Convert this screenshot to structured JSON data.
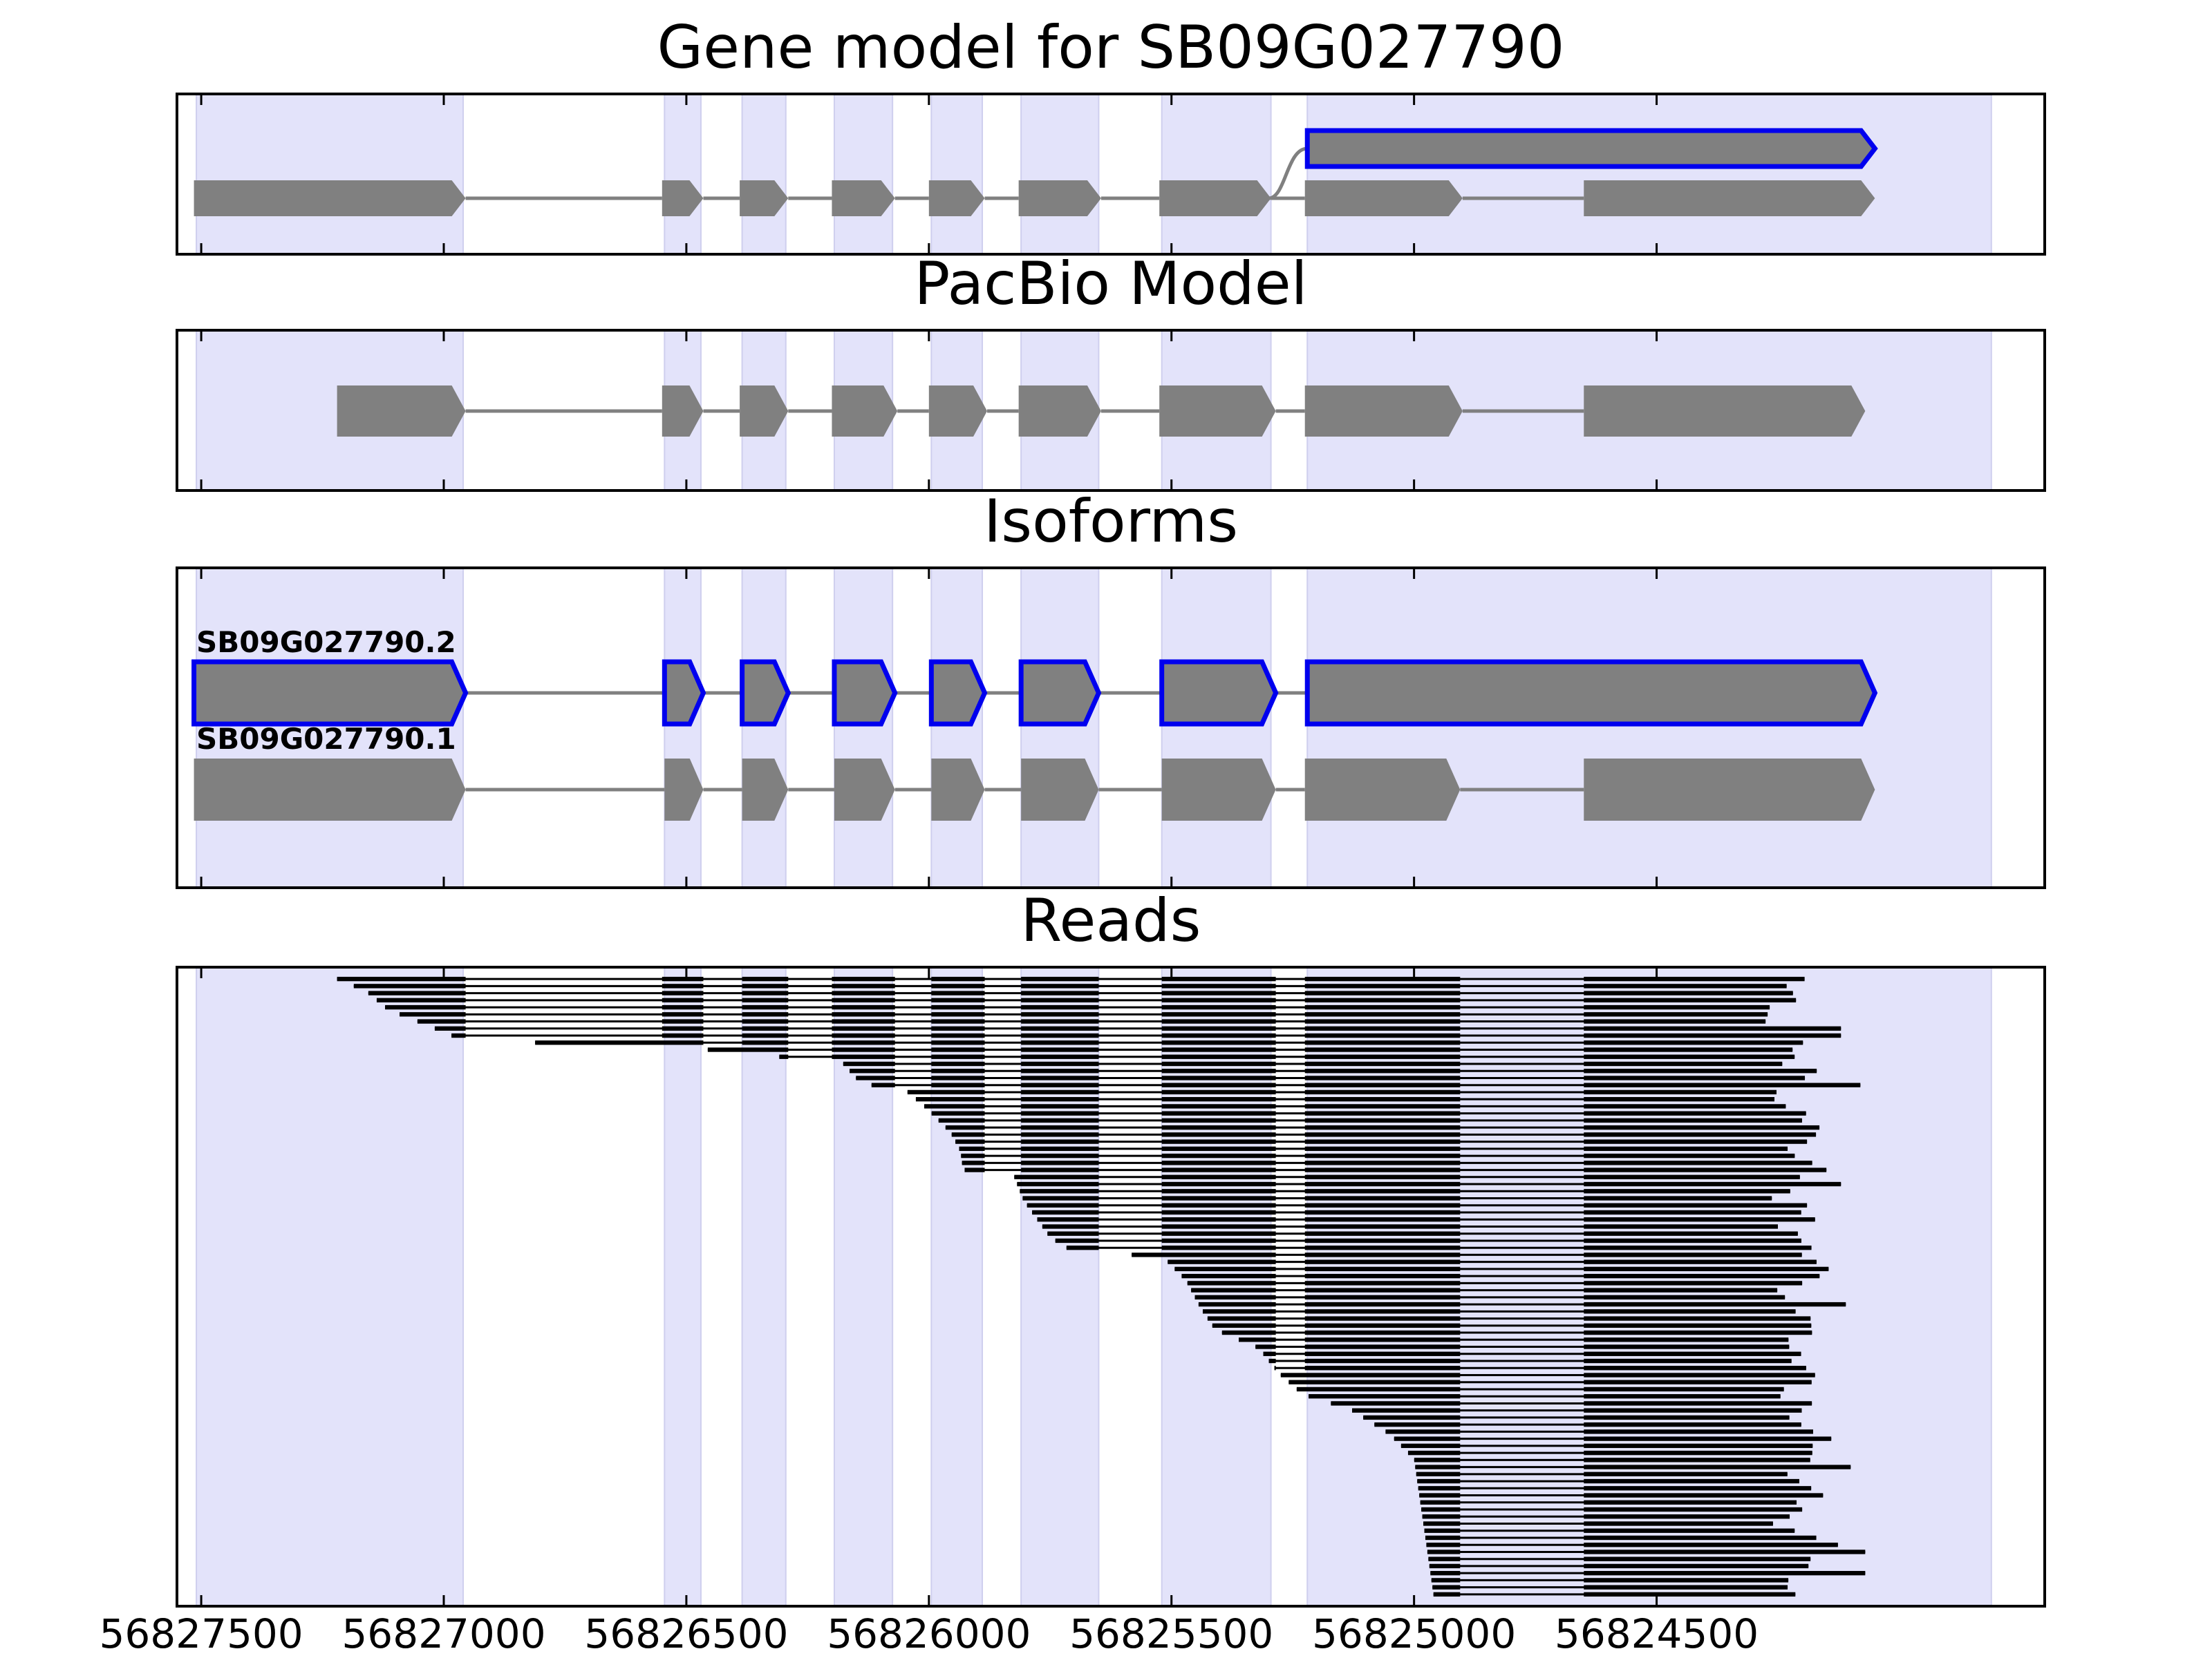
{
  "chart_data": {
    "type": "gene-track",
    "x_direction": "decreasing",
    "xlim": [
      56827550,
      56823700
    ],
    "x_ticks": [
      56827500,
      56827000,
      56826500,
      56826000,
      56825500,
      56825000,
      56824500
    ],
    "x_tick_labels": [
      "56827500",
      "56827000",
      "56826500",
      "56826000",
      "56825500",
      "56825000",
      "56824500"
    ],
    "exon_shading": [
      [
        56827510,
        56826960
      ],
      [
        56826545,
        56826470
      ],
      [
        56826385,
        56826295
      ],
      [
        56826195,
        56826075
      ],
      [
        56825995,
        56825890
      ],
      [
        56825810,
        56825650
      ],
      [
        56825520,
        56825295
      ],
      [
        56825220,
        56823810
      ]
    ],
    "panels": [
      {
        "title": "Gene model for SB09G027790",
        "transcripts": [
          {
            "label": "",
            "highlight": false,
            "exons": [
              [
                56827515,
                56826955
              ],
              [
                56826550,
                56826465
              ],
              [
                56826390,
                56826290
              ],
              [
                56826200,
                56826070
              ],
              [
                56826000,
                56825885
              ],
              [
                56825815,
                56825645
              ],
              [
                56825525,
                56825295
              ],
              [
                56825225,
                56824900
              ],
              [
                56824650,
                56824050
              ]
            ]
          },
          {
            "label": "",
            "highlight": true,
            "branch_from": 56825300,
            "exons": [
              [
                56825220,
                56824050
              ]
            ]
          }
        ]
      },
      {
        "title": "PacBio Model",
        "transcripts": [
          {
            "label": "",
            "highlight": false,
            "exons": [
              [
                56827220,
                56826955
              ],
              [
                56826550,
                56826465
              ],
              [
                56826390,
                56826290
              ],
              [
                56826200,
                56826065
              ],
              [
                56826000,
                56825880
              ],
              [
                56825815,
                56825645
              ],
              [
                56825525,
                56825285
              ],
              [
                56825225,
                56824900
              ],
              [
                56824650,
                56824070
              ]
            ]
          }
        ]
      },
      {
        "title": "Isoforms",
        "transcripts": [
          {
            "label": "SB09G027790.2",
            "highlight": true,
            "exons": [
              [
                56827515,
                56826955
              ],
              [
                56826545,
                56826465
              ],
              [
                56826385,
                56826290
              ],
              [
                56826195,
                56826070
              ],
              [
                56825995,
                56825885
              ],
              [
                56825810,
                56825650
              ],
              [
                56825520,
                56825285
              ],
              [
                56825220,
                56824050
              ]
            ]
          },
          {
            "label": "SB09G027790.1",
            "highlight": false,
            "exons": [
              [
                56827515,
                56826955
              ],
              [
                56826545,
                56826465
              ],
              [
                56826385,
                56826290
              ],
              [
                56826195,
                56826070
              ],
              [
                56825995,
                56825885
              ],
              [
                56825810,
                56825650
              ],
              [
                56825520,
                56825285
              ],
              [
                56825225,
                56824905
              ],
              [
                56824650,
                56824050
              ]
            ]
          }
        ]
      }
    ],
    "reads": {
      "title": "Reads",
      "count": 88,
      "junctions": [
        [
          56826955,
          56826550
        ],
        [
          56826465,
          56826385
        ],
        [
          56826290,
          56826200
        ],
        [
          56826070,
          56825995
        ],
        [
          56825885,
          56825810
        ],
        [
          56825650,
          56825520
        ],
        [
          56825285,
          56825225
        ],
        [
          56824905,
          56824650
        ]
      ],
      "start_points": [
        [
          0,
          56827220
        ],
        [
          0.02,
          56827160
        ],
        [
          0.05,
          56827115
        ],
        [
          0.075,
          56827035
        ],
        [
          0.1,
          56826960
        ],
        [
          0.11,
          56826530
        ],
        [
          0.12,
          56826380
        ],
        [
          0.125,
          56826330
        ],
        [
          0.135,
          56826180
        ],
        [
          0.17,
          56826140
        ],
        [
          0.18,
          56826050
        ],
        [
          0.21,
          56826005
        ],
        [
          0.25,
          56825955
        ],
        [
          0.28,
          56825935
        ],
        [
          0.31,
          56825930
        ],
        [
          0.32,
          56825825
        ],
        [
          0.36,
          56825805
        ],
        [
          0.42,
          56825750
        ],
        [
          0.445,
          56825700
        ],
        [
          0.45,
          56825520
        ],
        [
          0.49,
          56825470
        ],
        [
          0.535,
          56825440
        ],
        [
          0.57,
          56825410
        ],
        [
          0.6,
          56825320
        ],
        [
          0.64,
          56825280
        ],
        [
          0.675,
          56825230
        ],
        [
          0.7,
          56825130
        ],
        [
          0.74,
          56825050
        ],
        [
          0.78,
          56825000
        ],
        [
          1,
          56824960
        ]
      ],
      "end_points": [
        [
          0,
          56824220
        ],
        [
          0.03,
          56824220
        ],
        [
          0.07,
          56824280
        ],
        [
          0.1,
          56824180
        ],
        [
          0.12,
          56824240
        ],
        [
          0.16,
          56824200
        ],
        [
          0.2,
          56824260
        ],
        [
          0.24,
          56824160
        ],
        [
          0.28,
          56824230
        ],
        [
          0.31,
          56824170
        ],
        [
          0.35,
          56824250
        ],
        [
          0.39,
          56824190
        ],
        [
          0.43,
          56824210
        ],
        [
          0.47,
          56824150
        ],
        [
          0.51,
          56824260
        ],
        [
          0.55,
          56824180
        ],
        [
          0.6,
          56824230
        ],
        [
          0.64,
          56824170
        ],
        [
          0.68,
          56824240
        ],
        [
          0.72,
          56824200
        ],
        [
          0.76,
          56824160
        ],
        [
          0.8,
          56824220
        ],
        [
          0.84,
          56824180
        ],
        [
          0.88,
          56824250
        ],
        [
          0.92,
          56824140
        ],
        [
          0.96,
          56824200
        ],
        [
          1,
          56824220
        ]
      ],
      "long_reads": [
        [
          7,
          56824120
        ],
        [
          8,
          56824120
        ],
        [
          13,
          56824170
        ],
        [
          15,
          56824080
        ],
        [
          23,
          56824190
        ],
        [
          24,
          56824230
        ],
        [
          27,
          56824150
        ],
        [
          29,
          56824120
        ],
        [
          32,
          56824190
        ],
        [
          35,
          56824250
        ],
        [
          43,
          56824200
        ],
        [
          46,
          56824110
        ],
        [
          60,
          56824180
        ],
        [
          65,
          56824140
        ],
        [
          69,
          56824100
        ],
        [
          75,
          56824200
        ],
        [
          81,
          56824070
        ],
        [
          84,
          56824070
        ],
        [
          86,
          56824230
        ]
      ]
    }
  }
}
